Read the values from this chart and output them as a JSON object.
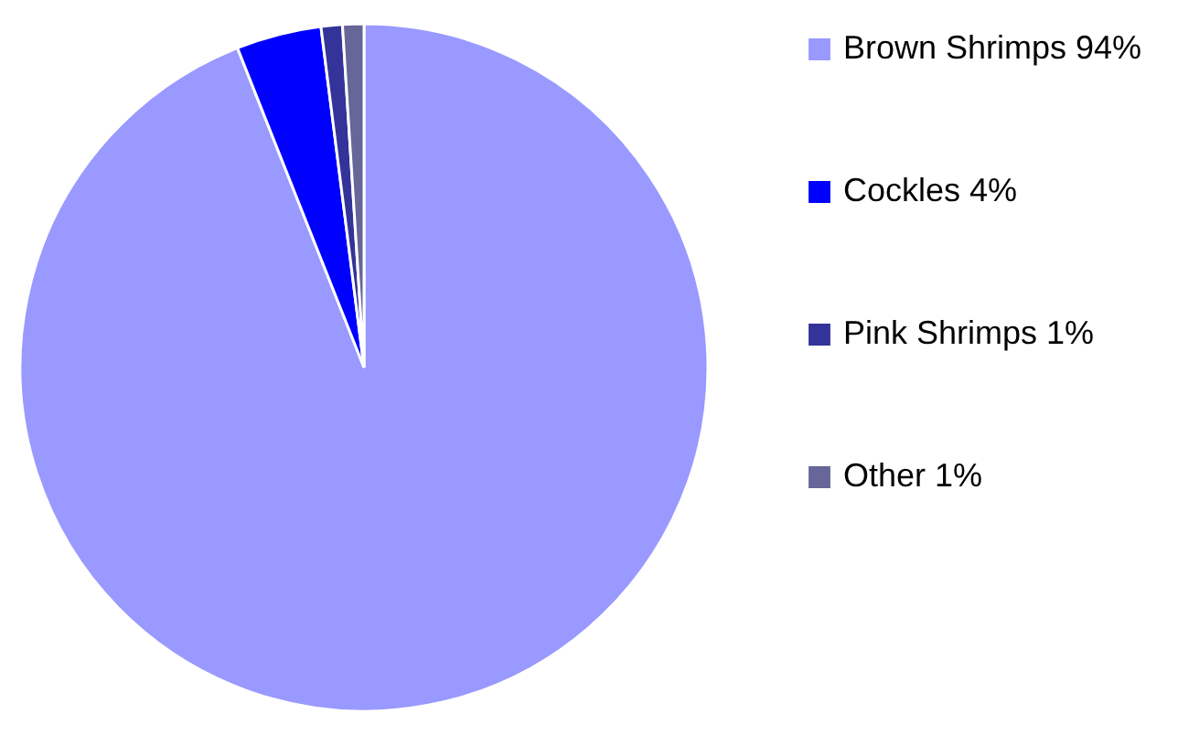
{
  "chart_data": {
    "type": "pie",
    "categories": [
      "Brown Shrimps 94%",
      "Cockles 4%",
      "Pink Shrimps 1%",
      "Other 1%"
    ],
    "values": [
      94,
      4,
      1,
      1
    ],
    "colors": [
      "#9999ff",
      "#0000ff",
      "#333399",
      "#666699"
    ],
    "legend": "right"
  }
}
